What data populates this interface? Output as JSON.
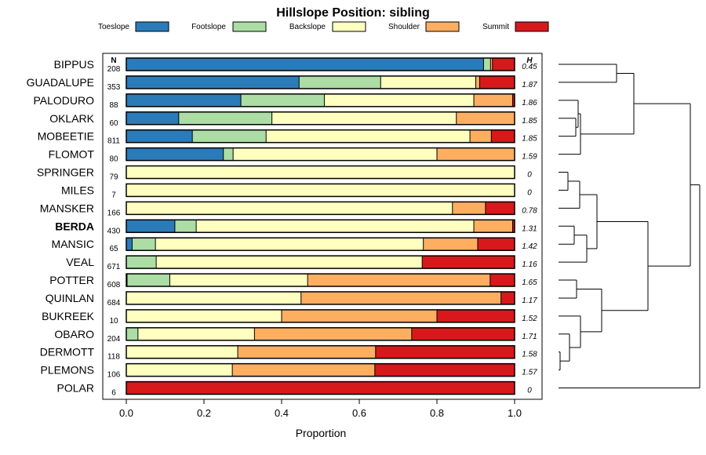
{
  "chart_data": {
    "type": "bar",
    "orientation": "horizontal",
    "stacked": true,
    "title": "Hillslope Position: sibling",
    "xlabel": "Proportion",
    "xlim": [
      0,
      1
    ],
    "xticks": [
      "0.0",
      "0.2",
      "0.4",
      "0.6",
      "0.8",
      "1.0"
    ],
    "n_header": "N",
    "h_header": "H",
    "legend": [
      {
        "name": "Toeslope",
        "color": "#2b7bb9"
      },
      {
        "name": "Footslope",
        "color": "#abdda4"
      },
      {
        "name": "Backslope",
        "color": "#ffffbf"
      },
      {
        "name": "Shoulder",
        "color": "#fdae61"
      },
      {
        "name": "Summit",
        "color": "#d7191c"
      }
    ],
    "categories": [
      "BIPPUS",
      "GUADALUPE",
      "PALODURO",
      "OKLARK",
      "MOBEETIE",
      "FLOMOT",
      "SPRINGER",
      "MILES",
      "MANSKER",
      "BERDA",
      "MANSIC",
      "VEAL",
      "POTTER",
      "QUINLAN",
      "BUKREEK",
      "OBARO",
      "DERMOTT",
      "PLEMONS",
      "POLAR"
    ],
    "highlight": "BERDA",
    "n": [
      "208",
      "353",
      "88",
      "60",
      "811",
      "80",
      "79",
      "7",
      "166",
      "430",
      "65",
      "671",
      "608",
      "684",
      "10",
      "204",
      "118",
      "106",
      "6"
    ],
    "h": [
      "0.45",
      "1.87",
      "1.86",
      "1.85",
      "1.85",
      "1.59",
      "0",
      "0",
      "0.78",
      "1.31",
      "1.42",
      "1.16",
      "1.65",
      "1.17",
      "1.52",
      "1.71",
      "1.58",
      "1.57",
      "0"
    ],
    "series": [
      {
        "name": "Toeslope",
        "values": [
          0.92,
          0.445,
          0.295,
          0.135,
          0.17,
          0.25,
          0,
          0,
          0,
          0.125,
          0.015,
          0,
          0.002,
          0,
          0,
          0,
          0,
          0,
          0
        ]
      },
      {
        "name": "Footslope",
        "values": [
          0.018,
          0.21,
          0.215,
          0.24,
          0.19,
          0.025,
          0,
          0,
          0,
          0.055,
          0.06,
          0.077,
          0.11,
          0,
          0,
          0.03,
          0,
          0,
          0
        ]
      },
      {
        "name": "Backslope",
        "values": [
          0,
          0.245,
          0.385,
          0.475,
          0.525,
          0.525,
          1.0,
          1.0,
          0.84,
          0.715,
          0.69,
          0.685,
          0.355,
          0.45,
          0.4,
          0.3,
          0.287,
          0.273,
          0
        ]
      },
      {
        "name": "Shoulder",
        "values": [
          0.005,
          0.01,
          0.1,
          0.15,
          0.055,
          0.2,
          0,
          0,
          0.085,
          0.1,
          0.14,
          0,
          0.47,
          0.515,
          0.4,
          0.405,
          0.355,
          0.367,
          0
        ]
      },
      {
        "name": "Summit",
        "values": [
          0.057,
          0.09,
          0.005,
          0,
          0.06,
          0,
          0,
          0,
          0.075,
          0.005,
          0.095,
          0.238,
          0.063,
          0.035,
          0.2,
          0.265,
          0.358,
          0.36,
          1.0
        ]
      }
    ]
  }
}
